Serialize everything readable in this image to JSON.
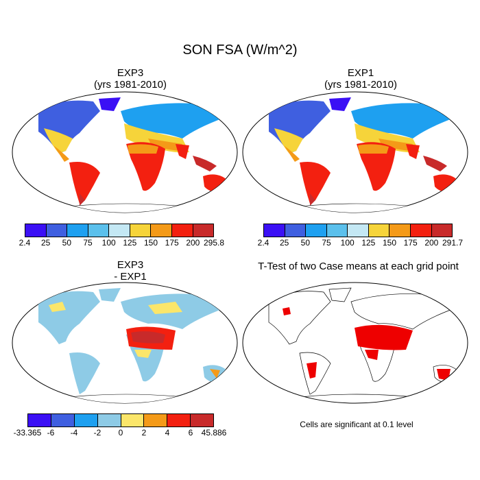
{
  "title": "SON FSA (W/m^2)",
  "panels": {
    "exp3": {
      "title": "EXP3",
      "subtitle": "(yrs 1981-2010)"
    },
    "exp1": {
      "title": "EXP1",
      "subtitle": "(yrs 1981-2010)"
    },
    "diff": {
      "title": "EXP3",
      "subtitle": "- EXP1"
    },
    "ttest": {
      "title": "T-Test of two Case means at each grid point"
    }
  },
  "colorbars": {
    "exp3": {
      "colors": [
        "#3b10f5",
        "#3f5fe0",
        "#1ea0f0",
        "#5bc0ec",
        "#c4e8f4",
        "#f6d43a",
        "#f49a18",
        "#f32010",
        "#c82a2a"
      ],
      "labels": [
        "2.4",
        "25",
        "50",
        "75",
        "100",
        "125",
        "150",
        "175",
        "200",
        "295.8"
      ]
    },
    "exp1": {
      "colors": [
        "#3b10f5",
        "#3f5fe0",
        "#1ea0f0",
        "#5bc0ec",
        "#c4e8f4",
        "#f6d43a",
        "#f49a18",
        "#f32010",
        "#c82a2a"
      ],
      "labels": [
        "2.4",
        "25",
        "50",
        "75",
        "100",
        "125",
        "150",
        "175",
        "200",
        "291.7"
      ]
    },
    "diff": {
      "colors": [
        "#3b10f5",
        "#3f5fe0",
        "#1ea0f0",
        "#8ecbe6",
        "#fbe66a",
        "#f49a18",
        "#f32010",
        "#c82a2a"
      ],
      "labels": [
        "-33.365",
        "-6",
        "-4",
        "-2",
        "0",
        "2",
        "4",
        "6",
        "45.886"
      ]
    }
  },
  "note": "Cells are significant at 0.1 level"
}
